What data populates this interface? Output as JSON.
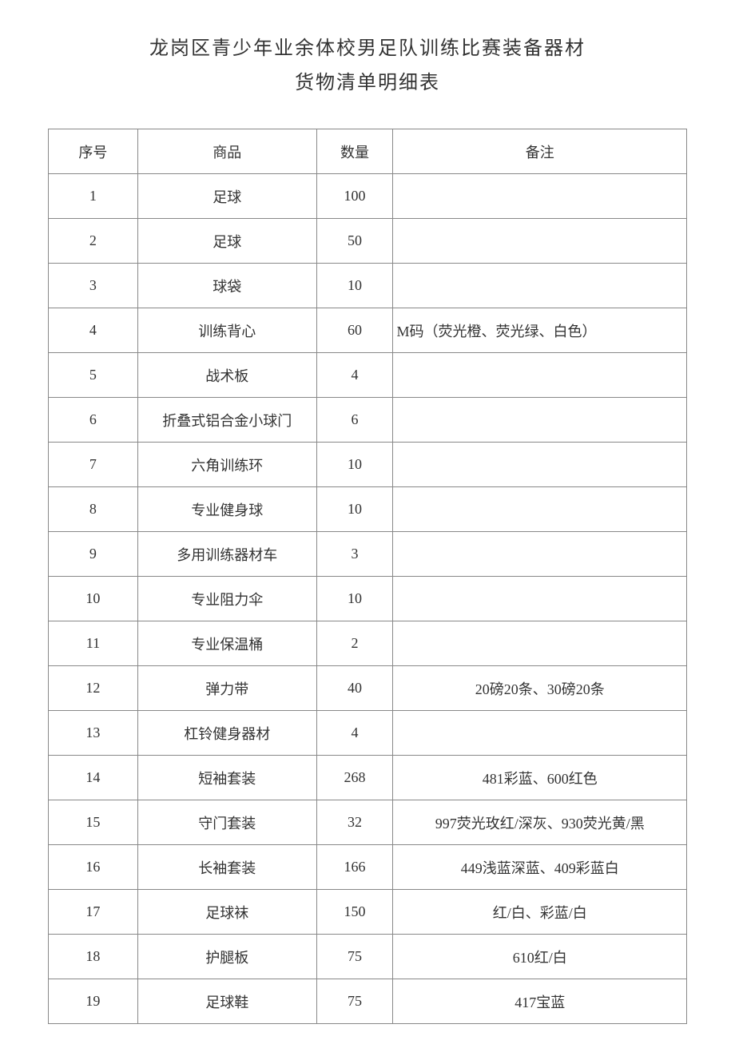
{
  "title": {
    "line1": "龙岗区青少年业余体校男足队训练比赛装备器材",
    "line2": "货物清单明细表"
  },
  "table": {
    "headers": {
      "seq": "序号",
      "product": "商品",
      "qty": "数量",
      "note": "备注"
    },
    "rows": [
      {
        "seq": "1",
        "product": "足球",
        "qty": "100",
        "note": ""
      },
      {
        "seq": "2",
        "product": "足球",
        "qty": "50",
        "note": ""
      },
      {
        "seq": "3",
        "product": "球袋",
        "qty": "10",
        "note": ""
      },
      {
        "seq": "4",
        "product": "训练背心",
        "qty": "60",
        "note": "M码（荧光橙、荧光绿、白色）",
        "noteAlign": "left"
      },
      {
        "seq": "5",
        "product": "战术板",
        "qty": "4",
        "note": ""
      },
      {
        "seq": "6",
        "product": "折叠式铝合金小球门",
        "qty": "6",
        "note": ""
      },
      {
        "seq": "7",
        "product": "六角训练环",
        "qty": "10",
        "note": ""
      },
      {
        "seq": "8",
        "product": "专业健身球",
        "qty": "10",
        "note": ""
      },
      {
        "seq": "9",
        "product": "多用训练器材车",
        "qty": "3",
        "note": ""
      },
      {
        "seq": "10",
        "product": "专业阻力伞",
        "qty": "10",
        "note": ""
      },
      {
        "seq": "11",
        "product": "专业保温桶",
        "qty": "2",
        "note": ""
      },
      {
        "seq": "12",
        "product": "弹力带",
        "qty": "40",
        "note": "20磅20条、30磅20条"
      },
      {
        "seq": "13",
        "product": "杠铃健身器材",
        "qty": "4",
        "note": ""
      },
      {
        "seq": "14",
        "product": "短袖套装",
        "qty": "268",
        "note": "481彩蓝、600红色"
      },
      {
        "seq": "15",
        "product": "守门套装",
        "qty": "32",
        "note": "997荧光玫红/深灰、930荧光黄/黑"
      },
      {
        "seq": "16",
        "product": "长袖套装",
        "qty": "166",
        "note": "449浅蓝深蓝、409彩蓝白"
      },
      {
        "seq": "17",
        "product": "足球袜",
        "qty": "150",
        "note": "红/白、彩蓝/白"
      },
      {
        "seq": "18",
        "product": "护腿板",
        "qty": "75",
        "note": "610红/白"
      },
      {
        "seq": "19",
        "product": "足球鞋",
        "qty": "75",
        "note": "417宝蓝"
      }
    ]
  }
}
